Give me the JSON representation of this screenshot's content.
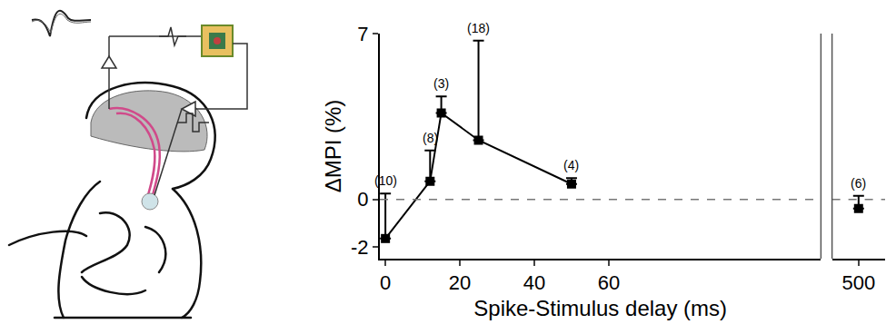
{
  "chart_data": {
    "type": "line",
    "x_label": "Spike-Stimulus delay (ms)",
    "y_label": "ΔMPI (%)",
    "xlim": [
      -1.5,
      117
    ],
    "xticks": [
      0,
      20,
      40,
      60
    ],
    "x2lim": [
      490,
      510
    ],
    "x2ticks": [
      500
    ],
    "ylim": [
      -2.5,
      7
    ],
    "yticks": [
      -2,
      0,
      7
    ],
    "reference_line": 0,
    "grid": false,
    "series": [
      {
        "x": [
          0,
          12,
          15,
          25,
          50
        ],
        "values": [
          -1.65,
          0.77,
          3.65,
          2.5,
          0.65
        ],
        "errors": [
          1.9,
          1.3,
          0.7,
          4.2,
          0.25
        ],
        "n_labels": [
          "(10)",
          "(8)",
          "(3)",
          "(18)",
          "(4)"
        ],
        "color": "#000000",
        "marker": "square",
        "line_style": "solid"
      },
      {
        "x": [
          500
        ],
        "values": [
          -0.38
        ],
        "errors": [
          0.53
        ],
        "n_labels": [
          "(6)"
        ],
        "axis": "x2",
        "color": "#000000",
        "marker": "square",
        "line_style": "none"
      }
    ]
  }
}
